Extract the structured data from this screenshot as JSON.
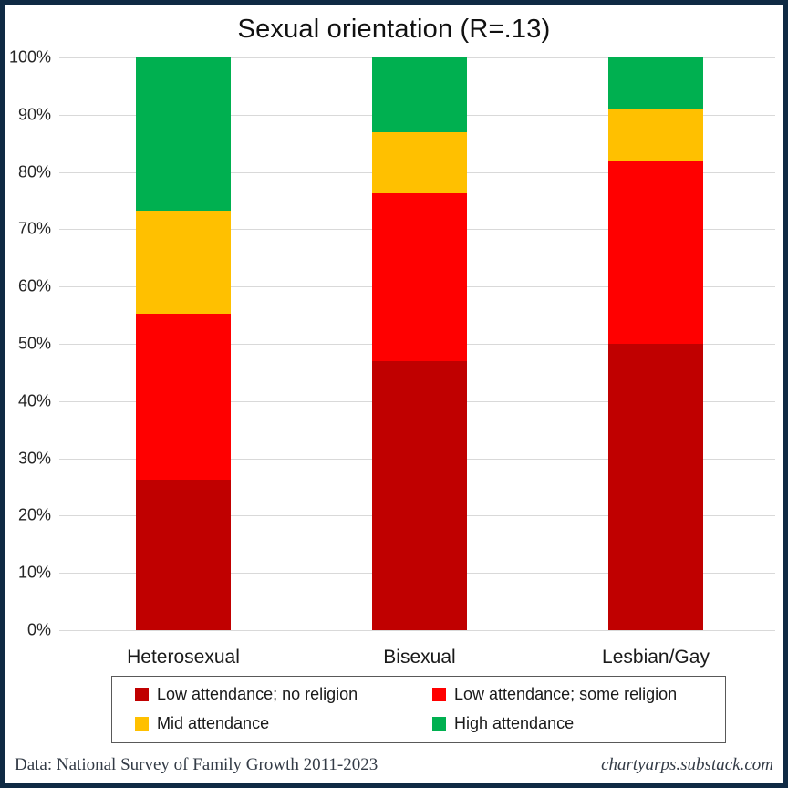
{
  "title": "Sexual orientation (R=.13)",
  "chart_data": {
    "type": "bar",
    "stacked": true,
    "title": "Sexual orientation (R=.13)",
    "categories": [
      "Heterosexual",
      "Bisexual",
      "Lesbian/Gay"
    ],
    "series": [
      {
        "name": "Low attendance; no religion",
        "color": "#c00000",
        "values": [
          26.2,
          47.0,
          50.0
        ]
      },
      {
        "name": "Low attendance; some religion",
        "color": "#ff0000",
        "values": [
          29.1,
          29.2,
          32.0
        ]
      },
      {
        "name": "Mid attendance",
        "color": "#ffc000",
        "values": [
          18.0,
          10.8,
          9.0
        ]
      },
      {
        "name": "High attendance",
        "color": "#00b050",
        "values": [
          26.7,
          13.0,
          9.0
        ]
      }
    ],
    "xlabel": "",
    "ylabel": "",
    "ylim": [
      0,
      100
    ],
    "y_ticks": [
      "0%",
      "10%",
      "20%",
      "30%",
      "40%",
      "50%",
      "60%",
      "70%",
      "80%",
      "90%",
      "100%"
    ],
    "grid": true,
    "legend_position": "bottom-box"
  },
  "footer": {
    "source": "Data: National Survey of Family Growth 2011-2023",
    "site": "chartyarps.substack.com"
  },
  "colors": {
    "frame_border": "#0f2a44",
    "gridline": "#d9d9d9",
    "legend_border": "#595959",
    "footer_text": "#333b46"
  }
}
